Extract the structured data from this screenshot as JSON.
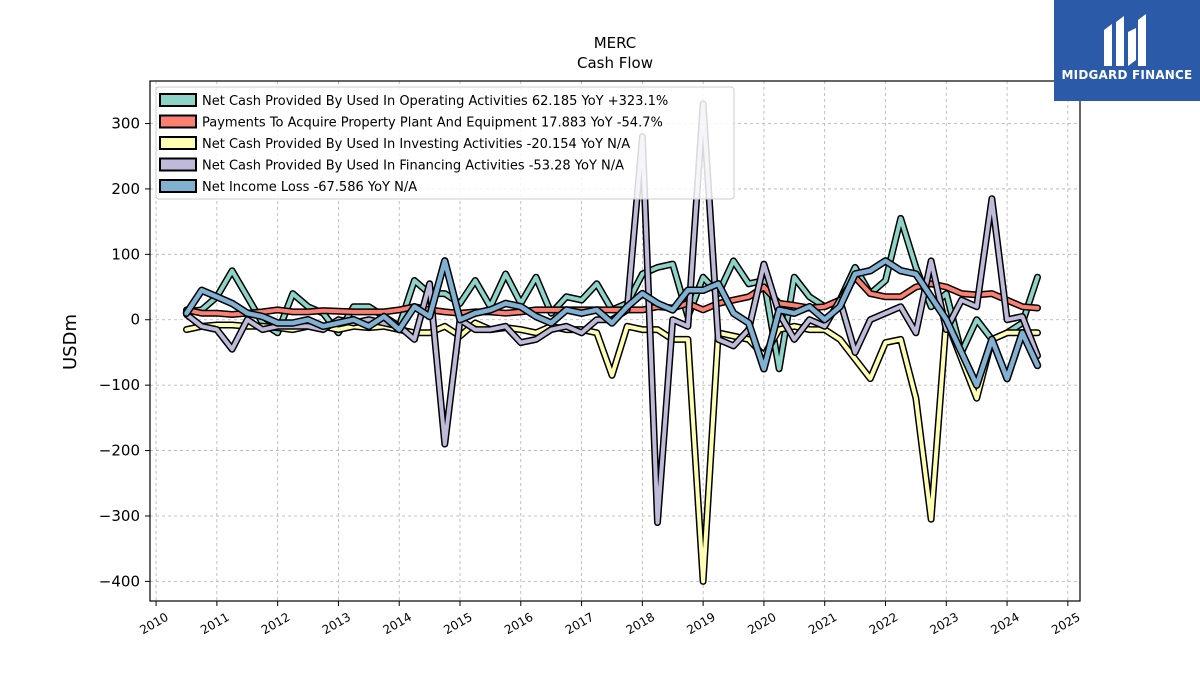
{
  "brand": {
    "name": "MIDGARD FINANCE",
    "bg": "#2a5aa8"
  },
  "chart_data": {
    "type": "line",
    "title": "MERC",
    "subtitle": "Cash Flow",
    "ylabel": "USDm",
    "xlabel": "",
    "xlim": [
      2009.9,
      2025.2
    ],
    "ylim": [
      -430,
      365
    ],
    "yticks": [
      300,
      200,
      100,
      0,
      -100,
      -200,
      -300,
      -400
    ],
    "ytick_labels": [
      "300",
      "200",
      "100",
      "0",
      "−100",
      "−200",
      "−300",
      "−400"
    ],
    "xticks": [
      2010,
      2011,
      2012,
      2013,
      2014,
      2015,
      2016,
      2017,
      2018,
      2019,
      2020,
      2021,
      2022,
      2023,
      2024,
      2025
    ],
    "xtick_labels": [
      "2010",
      "2011",
      "2012",
      "2013",
      "2014",
      "2015",
      "2016",
      "2017",
      "2018",
      "2019",
      "2020",
      "2021",
      "2022",
      "2023",
      "2024",
      "2025"
    ],
    "grid": true,
    "legend_position": "top-left",
    "x": [
      2010.5,
      2010.75,
      2011.0,
      2011.25,
      2011.5,
      2011.75,
      2012.0,
      2012.25,
      2012.5,
      2012.75,
      2013.0,
      2013.25,
      2013.5,
      2013.75,
      2014.0,
      2014.25,
      2014.5,
      2014.75,
      2015.0,
      2015.25,
      2015.5,
      2015.75,
      2016.0,
      2016.25,
      2016.5,
      2016.75,
      2017.0,
      2017.25,
      2017.5,
      2017.75,
      2018.0,
      2018.25,
      2018.5,
      2018.75,
      2019.0,
      2019.25,
      2019.5,
      2019.75,
      2020.0,
      2020.25,
      2020.5,
      2020.75,
      2021.0,
      2021.25,
      2021.5,
      2021.75,
      2022.0,
      2022.25,
      2022.5,
      2022.75,
      2023.0,
      2023.25,
      2023.5,
      2023.75,
      2024.0,
      2024.25,
      2024.5
    ],
    "series": [
      {
        "name": "Net Cash Provided By Used In Operating Activities  62.185 YoY +323.1%",
        "color": "#8dd3c7",
        "width": 4,
        "values": [
          12,
          15,
          35,
          75,
          35,
          -5,
          -20,
          40,
          20,
          10,
          -20,
          20,
          20,
          5,
          -10,
          60,
          40,
          40,
          25,
          60,
          20,
          70,
          25,
          65,
          10,
          35,
          30,
          55,
          15,
          25,
          70,
          80,
          85,
          5,
          65,
          40,
          90,
          55,
          60,
          -75,
          65,
          35,
          20,
          30,
          80,
          40,
          60,
          155,
          80,
          20,
          40,
          -50,
          0,
          -30,
          -20,
          -5,
          65
        ]
      },
      {
        "name": "Payments To Acquire Property Plant And Equipment  17.883 YoY -54.7%",
        "color": "#fb8072",
        "width": 4,
        "values": [
          15,
          10,
          10,
          8,
          10,
          12,
          15,
          12,
          12,
          14,
          13,
          12,
          12,
          12,
          15,
          20,
          15,
          12,
          10,
          12,
          12,
          10,
          12,
          15,
          15,
          15,
          15,
          15,
          15,
          15,
          15,
          20,
          18,
          25,
          15,
          25,
          30,
          35,
          50,
          25,
          22,
          18,
          20,
          30,
          65,
          40,
          35,
          35,
          50,
          55,
          50,
          40,
          38,
          40,
          30,
          20,
          18
        ]
      },
      {
        "name": "Net Cash Provided By Used In Investing Activities  -20.154 YoY N/A",
        "color": "#ffffb3",
        "width": 4,
        "values": [
          -15,
          -10,
          -8,
          -8,
          -10,
          -10,
          -12,
          -15,
          -10,
          -10,
          -15,
          -10,
          -12,
          -10,
          -15,
          -20,
          -20,
          -10,
          -25,
          -5,
          -15,
          -12,
          -15,
          -20,
          -10,
          -15,
          -15,
          -20,
          -85,
          -10,
          -15,
          -15,
          -30,
          -30,
          -400,
          -20,
          -25,
          -30,
          -55,
          -15,
          -10,
          -15,
          -15,
          -30,
          -60,
          -90,
          -35,
          -30,
          -120,
          -305,
          0,
          -60,
          -120,
          -30,
          -20,
          -20,
          -20
        ]
      },
      {
        "name": "Net Cash Provided By Used In Financing Activities  -53.28 YoY N/A",
        "color": "#bebada",
        "width": 4,
        "values": [
          8,
          -10,
          -15,
          -45,
          0,
          -15,
          -10,
          -10,
          -10,
          -15,
          0,
          -5,
          0,
          -5,
          -10,
          -30,
          55,
          -190,
          0,
          -15,
          -15,
          -10,
          -35,
          -30,
          -15,
          -10,
          -20,
          0,
          0,
          15,
          280,
          -310,
          0,
          -10,
          330,
          -30,
          -40,
          -15,
          85,
          10,
          -30,
          0,
          -10,
          30,
          -50,
          0,
          10,
          20,
          -20,
          90,
          -15,
          30,
          20,
          185,
          0,
          5,
          -55
        ]
      },
      {
        "name": "Net Income Loss  -67.586 YoY N/A",
        "color": "#80b1d3",
        "width": 4.5,
        "values": [
          10,
          45,
          35,
          25,
          10,
          5,
          -5,
          -5,
          0,
          -10,
          -5,
          0,
          -10,
          5,
          -15,
          20,
          5,
          90,
          0,
          10,
          15,
          25,
          20,
          5,
          -5,
          15,
          10,
          15,
          -5,
          20,
          40,
          25,
          15,
          45,
          45,
          55,
          10,
          -5,
          -75,
          15,
          10,
          20,
          0,
          20,
          70,
          75,
          90,
          75,
          70,
          35,
          0,
          -50,
          -100,
          -30,
          -90,
          -20,
          -70
        ]
      }
    ]
  }
}
